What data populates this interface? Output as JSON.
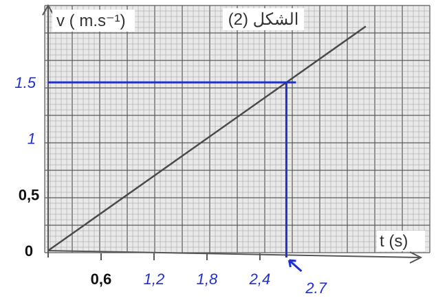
{
  "chart_data": {
    "type": "line",
    "title": "الشكل (2)",
    "ylabel": "v ( m.s⁻¹)",
    "xlabel": "t (s)",
    "xlim": [
      0,
      3.6
    ],
    "ylim": [
      0,
      2.0
    ],
    "grid": true,
    "series": [
      {
        "x": [
          0,
          3.6
        ],
        "y": [
          0,
          2.0
        ]
      }
    ],
    "x_ticks": [
      {
        "value": 0.6,
        "label": "0,6",
        "style": "black"
      },
      {
        "value": 1.2,
        "label": "1,2",
        "style": "blue"
      },
      {
        "value": 1.8,
        "label": "1,8",
        "style": "blue"
      },
      {
        "value": 2.4,
        "label": "2,4",
        "style": "blue"
      }
    ],
    "y_ticks": [
      {
        "value": 0,
        "label": "0",
        "style": "black"
      },
      {
        "value": 0.5,
        "label": "0,5",
        "style": "black"
      },
      {
        "value": 1,
        "label": "1",
        "style": "blue"
      },
      {
        "value": 1.5,
        "label": "1.5",
        "style": "blue"
      }
    ],
    "annotations": [
      {
        "type": "guide",
        "x": 2.7,
        "y": 1.5,
        "label": "2.7"
      }
    ],
    "colors": {
      "guide": "#1f2fd0",
      "line": "#4a4a4a",
      "grid": "#9a9a9a"
    }
  }
}
